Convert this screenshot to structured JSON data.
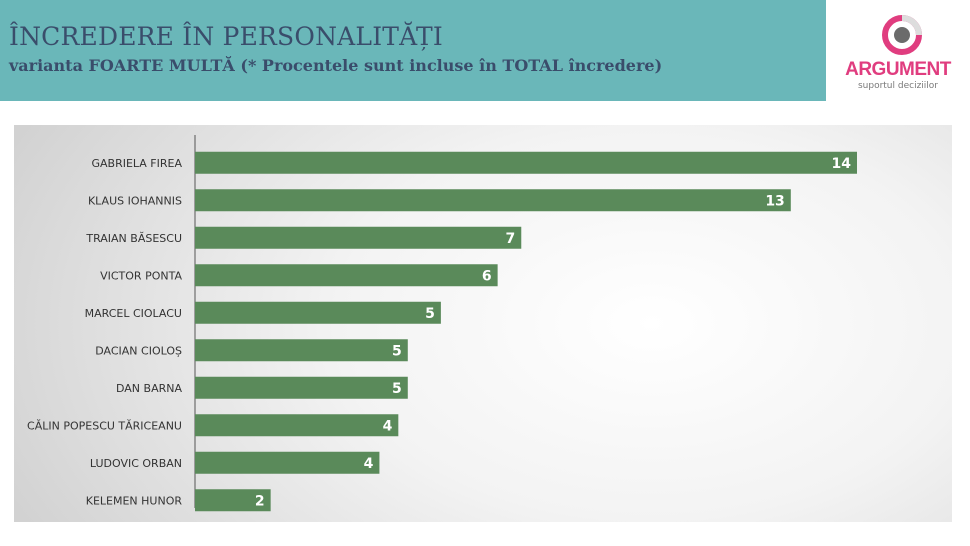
{
  "header": {
    "title": "ÎNCREDERE ÎN PERSONALITĂȚI",
    "subtitle": "varianta FOARTE MULTĂ (* Procentele sunt incluse în TOTAL încredere)"
  },
  "logo": {
    "name": "ARGUMENT",
    "tagline": "suportul deciziilor",
    "accent_color": "#e03d7f",
    "icon": "target-ring-icon"
  },
  "colors": {
    "header_bg": "#6ab7b9",
    "bar": "#5a8a5a",
    "title_text": "#3a4d6b"
  },
  "chart_data": {
    "type": "bar",
    "orientation": "horizontal",
    "categories": [
      "GABRIELA FIREA",
      "KLAUS IOHANNIS",
      "TRAIAN BĂSESCU",
      "VICTOR PONTA",
      "MARCEL CIOLACU",
      "DACIAN CIOLOȘ",
      "DAN BARNA",
      "CĂLIN POPESCU TĂRICEANU",
      "LUDOVIC ORBAN",
      "KELEMEN HUNOR"
    ],
    "values": [
      14,
      13,
      7,
      6,
      5,
      5,
      5,
      4,
      4,
      2
    ],
    "bar_lengths": [
      14,
      12.6,
      6.9,
      6.4,
      5.2,
      4.5,
      4.5,
      4.3,
      3.9,
      1.6
    ],
    "xlim": [
      0,
      14
    ],
    "data_labels": true,
    "grid": false,
    "legend": "none"
  }
}
